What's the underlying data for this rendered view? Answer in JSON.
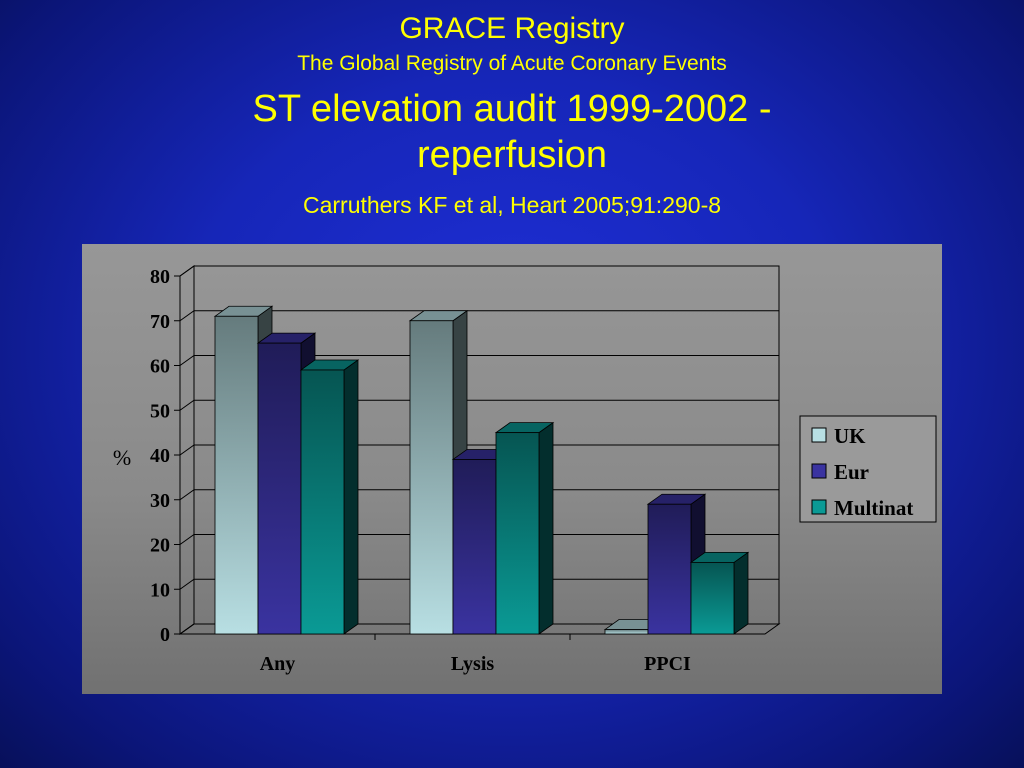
{
  "slide": {
    "title": "GRACE Registry",
    "subtitle": "The Global Registry of Acute Coronary Events",
    "heading_line1": "ST elevation audit 1999-2002 -",
    "heading_line2": "reperfusion",
    "citation": "Carruthers KF et al, Heart 2005;91:290-8"
  },
  "chart_data": {
    "type": "bar",
    "categories": [
      "Any",
      "Lysis",
      "PPCI"
    ],
    "series": [
      {
        "name": "UK",
        "values": [
          71,
          70,
          1
        ],
        "color": "#b8dfe3"
      },
      {
        "name": "Eur",
        "values": [
          65,
          39,
          29
        ],
        "color": "#3a33a0"
      },
      {
        "name": "Multinat",
        "values": [
          59,
          45,
          16
        ],
        "color": "#0a9a95"
      }
    ],
    "ylabel": "%",
    "ylim": [
      0,
      80
    ],
    "yticks": [
      0,
      10,
      20,
      30,
      40,
      50,
      60,
      70,
      80
    ],
    "grid": true,
    "legend": "right",
    "style": "3d-clustered"
  }
}
